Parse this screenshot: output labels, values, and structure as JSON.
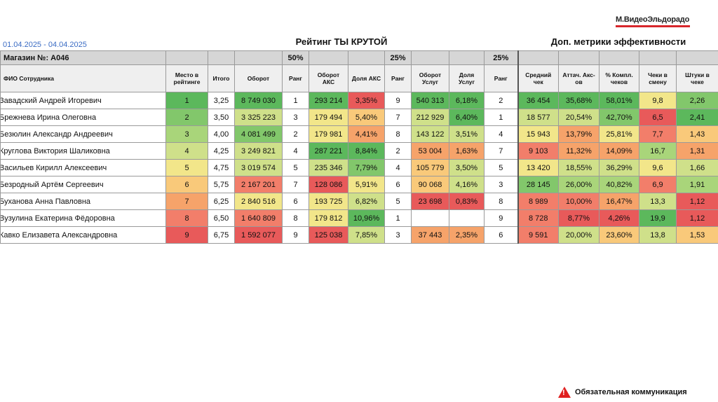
{
  "logo": "М.ВидеоЭльдорадо",
  "date_range": "01.04.2025 - 04.04.2025",
  "titles": {
    "main": "Рейтинг ТЫ КРУТОЙ",
    "extra": "Доп. метрики эффективности"
  },
  "store_label": "Магазин №: А046",
  "weights": [
    "50%",
    "25%",
    "25%"
  ],
  "headers": [
    "ФИО Сотрудника",
    "Место в рейтинге",
    "Итого",
    "Оборот",
    "Ранг",
    "Оборот АКС",
    "Доля АКС",
    "Ранг",
    "Оборот Услуг",
    "Доля Услуг",
    "Ранг",
    "Средний чек",
    "Аттач. Акс-ов",
    "% Компл. чеков",
    "Чеки в смену",
    "Штуки в чеке"
  ],
  "rows": [
    {
      "name": "Завадский Андрей Игоревич",
      "place": "1",
      "total": "3,25",
      "turnover": "8 749 030",
      "r1": "1",
      "aks": "293 214",
      "aks_share": "3,35%",
      "r2": "9",
      "services": "540 313",
      "svc_share": "6,18%",
      "r3": "2",
      "avg": "36 454",
      "attach": "35,68%",
      "compl": "58,01%",
      "checks": "9,8",
      "pcs": "2,26"
    },
    {
      "name": "Брежнева Ирина Олеговна",
      "place": "2",
      "total": "3,50",
      "turnover": "3 325 223",
      "r1": "3",
      "aks": "179 494",
      "aks_share": "5,40%",
      "r2": "7",
      "services": "212 929",
      "svc_share": "6,40%",
      "r3": "1",
      "avg": "18 577",
      "attach": "20,54%",
      "compl": "42,70%",
      "checks": "6,5",
      "pcs": "2,41"
    },
    {
      "name": "Безюлин Александр Андреевич",
      "place": "3",
      "total": "4,00",
      "turnover": "4 081 499",
      "r1": "2",
      "aks": "179 981",
      "aks_share": "4,41%",
      "r2": "8",
      "services": "143 122",
      "svc_share": "3,51%",
      "r3": "4",
      "avg": "15 943",
      "attach": "13,79%",
      "compl": "25,81%",
      "checks": "7,7",
      "pcs": "1,43"
    },
    {
      "name": "Круглова Виктория Шаликовна",
      "place": "4",
      "total": "4,25",
      "turnover": "3 249 821",
      "r1": "4",
      "aks": "287 221",
      "aks_share": "8,84%",
      "r2": "2",
      "services": "53 004",
      "svc_share": "1,63%",
      "r3": "7",
      "avg": "9 103",
      "attach": "11,32%",
      "compl": "14,09%",
      "checks": "16,7",
      "pcs": "1,31"
    },
    {
      "name": "Васильев Кирилл Алексеевич",
      "place": "5",
      "total": "4,75",
      "turnover": "3 019 574",
      "r1": "5",
      "aks": "235 346",
      "aks_share": "7,79%",
      "r2": "4",
      "services": "105 779",
      "svc_share": "3,50%",
      "r3": "5",
      "avg": "13 420",
      "attach": "18,55%",
      "compl": "36,29%",
      "checks": "9,6",
      "pcs": "1,66"
    },
    {
      "name": "Безродный Артём Сергеевич",
      "place": "6",
      "total": "5,75",
      "turnover": "2 167 201",
      "r1": "7",
      "aks": "128 086",
      "aks_share": "5,91%",
      "r2": "6",
      "services": "90 068",
      "svc_share": "4,16%",
      "r3": "3",
      "avg": "28 145",
      "attach": "26,00%",
      "compl": "40,82%",
      "checks": "6,9",
      "pcs": "1,91"
    },
    {
      "name": "Буханова Анна Павловна",
      "place": "7",
      "total": "6,25",
      "turnover": "2 840 516",
      "r1": "6",
      "aks": "193 725",
      "aks_share": "6,82%",
      "r2": "5",
      "services": "23 698",
      "svc_share": "0,83%",
      "r3": "8",
      "avg": "8 989",
      "attach": "10,00%",
      "compl": "16,47%",
      "checks": "13,3",
      "pcs": "1,12"
    },
    {
      "name": "Вузулина Екатерина Фёдоровна",
      "place": "8",
      "total": "6,50",
      "turnover": "1 640 809",
      "r1": "8",
      "aks": "179 812",
      "aks_share": "10,96%",
      "r2": "1",
      "services": "",
      "svc_share": "",
      "r3": "9",
      "avg": "8 728",
      "attach": "8,77%",
      "compl": "4,26%",
      "checks": "19,9",
      "pcs": "1,12"
    },
    {
      "name": "Кавко Елизавета Александровна",
      "place": "9",
      "total": "6,75",
      "turnover": "1 592 077",
      "r1": "9",
      "aks": "125 038",
      "aks_share": "7,85%",
      "r2": "3",
      "services": "37 443",
      "svc_share": "2,35%",
      "r3": "6",
      "avg": "9 591",
      "attach": "20,00%",
      "compl": "23,60%",
      "checks": "13,8",
      "pcs": "1,53"
    }
  ],
  "notice": "Обязательная коммуникация"
}
